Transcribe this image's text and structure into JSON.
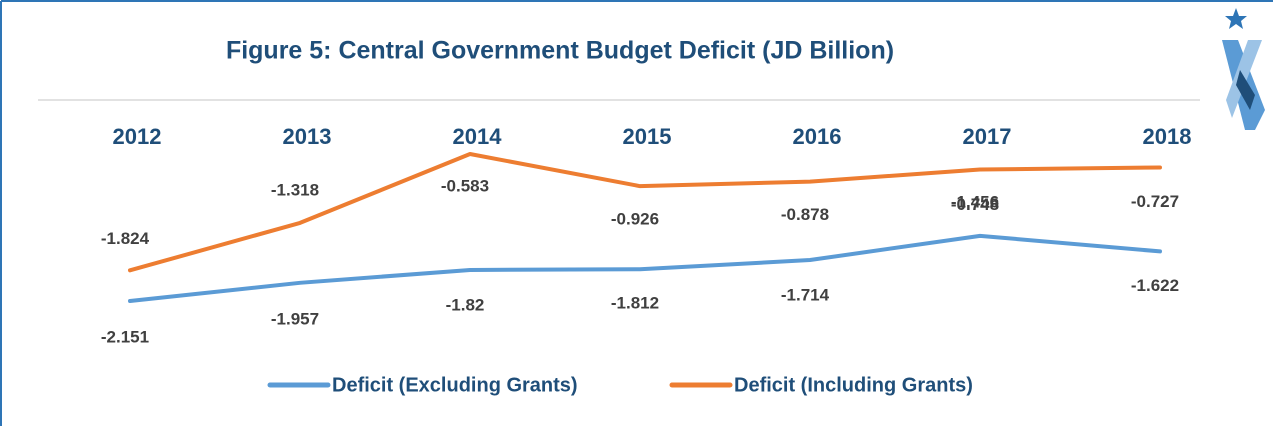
{
  "chart_data": {
    "type": "line",
    "title": "Figure 5: Central Government Budget Deficit (JD Billion)",
    "categories": [
      "2012",
      "2013",
      "2014",
      "2015",
      "2016",
      "2017",
      "2018"
    ],
    "series": [
      {
        "name": "Deficit (Excluding Grants)",
        "color": "#5b9bd5",
        "values": [
          -2.151,
          -1.957,
          -1.82,
          -1.812,
          -1.714,
          -1.456,
          -1.622
        ]
      },
      {
        "name": "Deficit (Including Grants)",
        "color": "#ed7d31",
        "values": [
          -1.824,
          -1.318,
          -0.583,
          -0.926,
          -0.878,
          -0.748,
          -0.727
        ]
      }
    ]
  }
}
